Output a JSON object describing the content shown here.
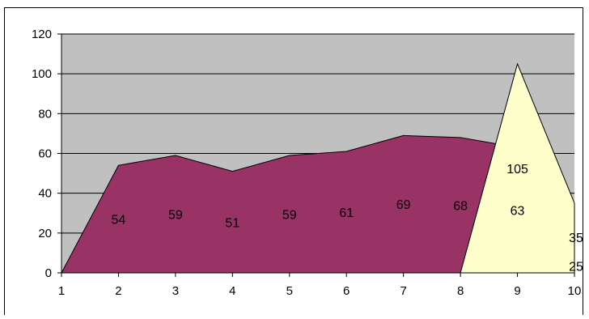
{
  "chart_data": {
    "type": "area",
    "categories": [
      "1",
      "2",
      "3",
      "4",
      "5",
      "6",
      "7",
      "8",
      "9",
      "10"
    ],
    "ylim": [
      0,
      120
    ],
    "yticks": [
      0,
      20,
      40,
      60,
      80,
      100,
      120
    ],
    "grid": true,
    "legend": "none",
    "series": [
      {
        "values": [
          0,
          54,
          59,
          51,
          59,
          61,
          69,
          68,
          63,
          25
        ],
        "color": "#993366"
      },
      {
        "values": [
          0,
          0,
          0,
          0,
          0,
          0,
          0,
          0,
          105,
          35
        ],
        "color": "#FFFFCC"
      }
    ],
    "data_labels": [
      {
        "series": 0,
        "values": [
          "54",
          "59",
          "51",
          "59",
          "61",
          "69",
          "68",
          "63",
          "25"
        ],
        "category_index": [
          1,
          2,
          3,
          4,
          5,
          6,
          7,
          8,
          9
        ]
      },
      {
        "series": 1,
        "values": [
          "105",
          "35"
        ],
        "category_index": [
          8,
          9
        ]
      }
    ],
    "plot_background": "#C0C0C0"
  }
}
